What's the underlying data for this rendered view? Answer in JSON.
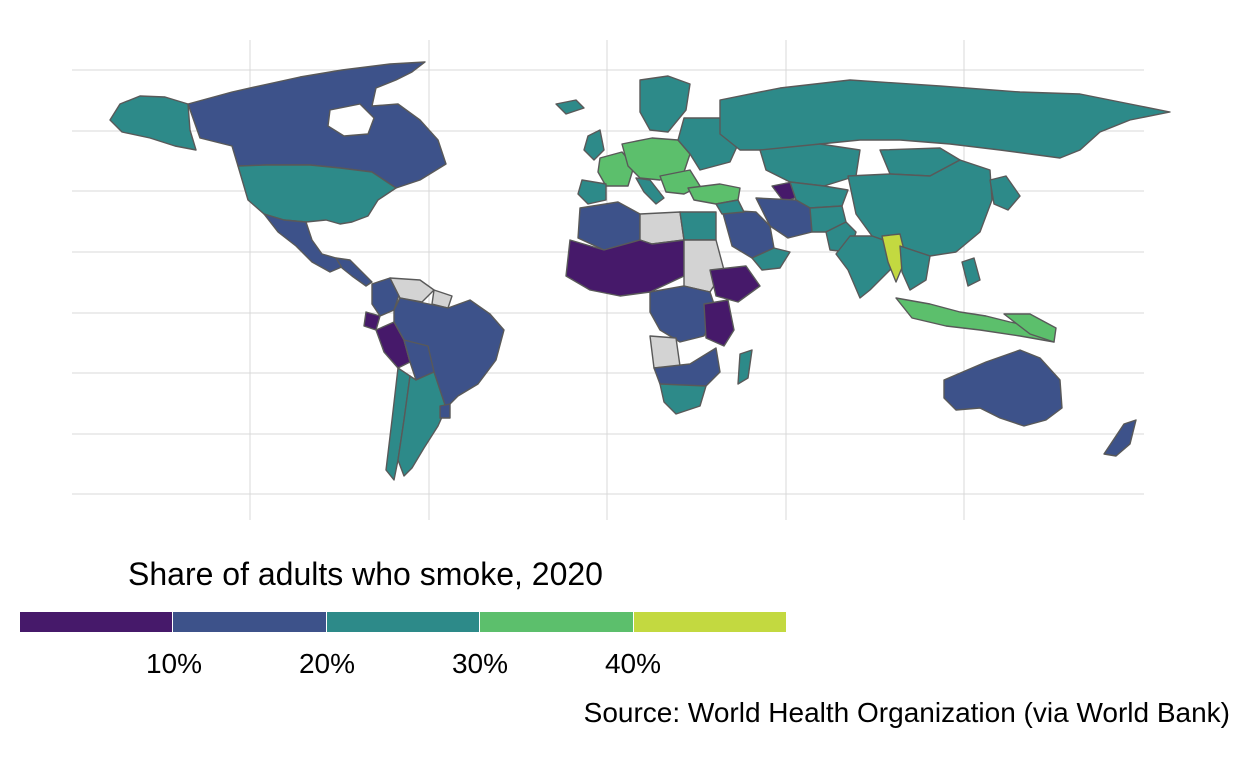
{
  "legend": {
    "title": "Share of adults who smoke, 2020",
    "bins": [
      {
        "color": "#46196a"
      },
      {
        "color": "#3d528a"
      },
      {
        "color": "#2d8a89"
      },
      {
        "color": "#5cbf6c"
      },
      {
        "color": "#c3d940"
      }
    ],
    "no_data_color": "#d3d3d3",
    "ticks": [
      "10%",
      "20%",
      "30%",
      "40%"
    ]
  },
  "source": "Source: World Health Organization (via World Bank)",
  "map": {
    "background": "#ffffff",
    "gridline_color": "#d9d9d9",
    "border_color": "#595959"
  }
}
